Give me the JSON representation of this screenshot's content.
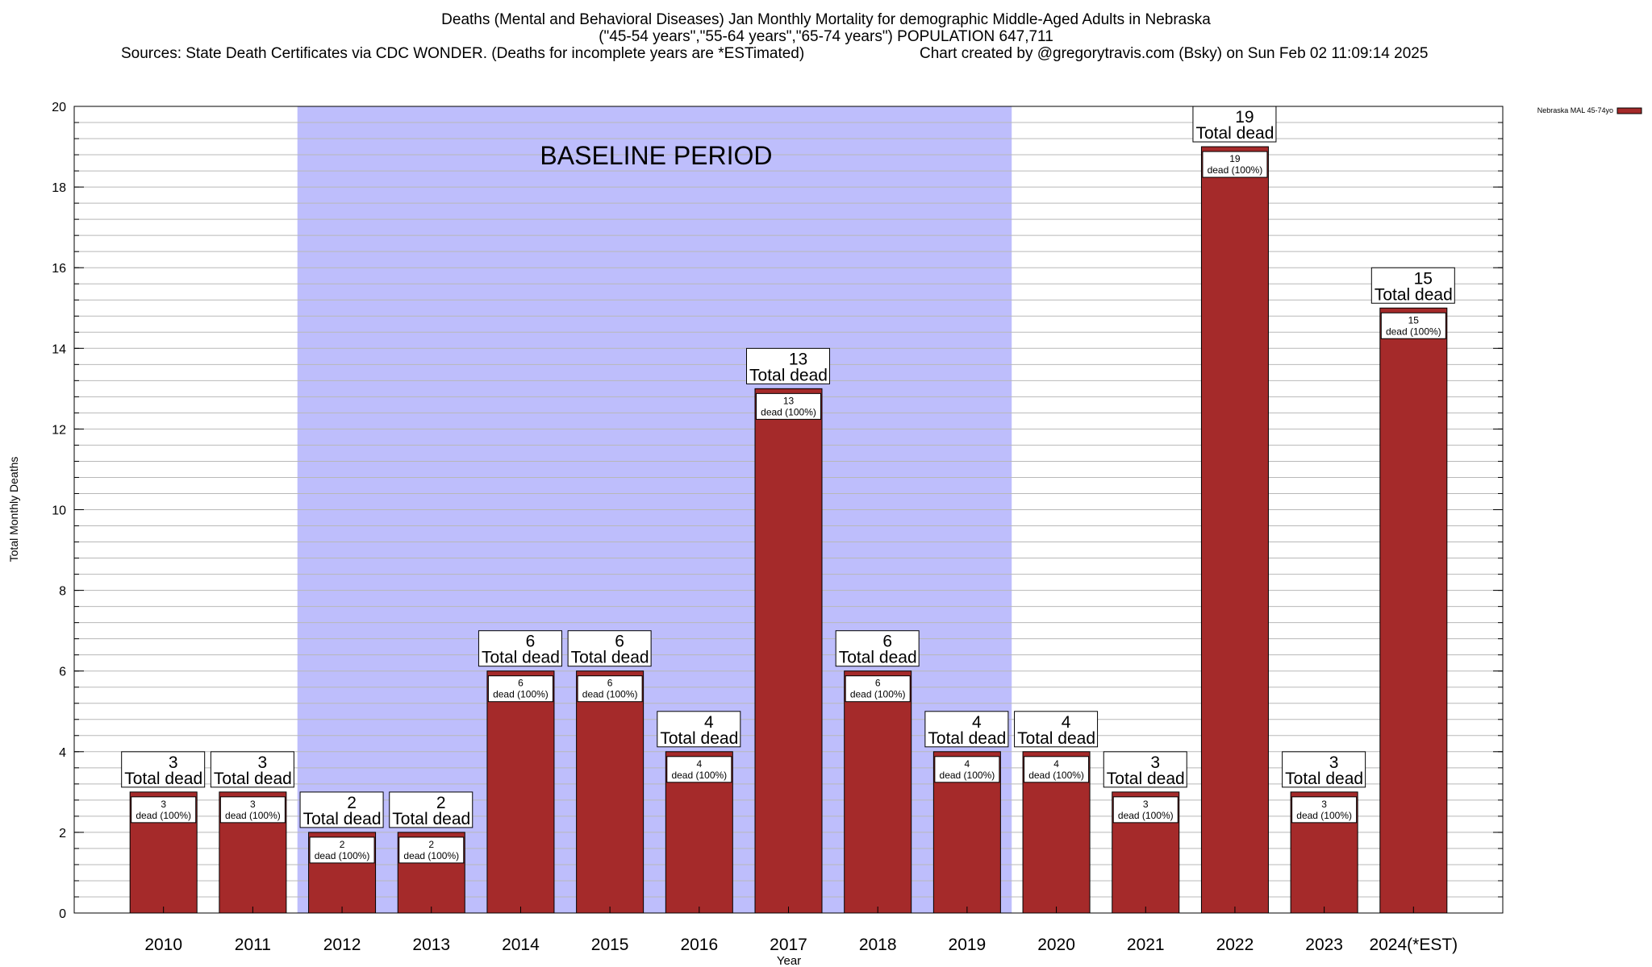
{
  "header": {
    "title_line1": "Deaths (Mental and Behavioral Diseases) Jan Monthly Mortality for demographic Middle-Aged Adults in Nebraska",
    "title_line2": "(\"45-54 years\",\"55-64 years\",\"65-74 years\") POPULATION 647,711",
    "sources": "Sources: State Death Certificates via CDC WONDER. (Deaths for incomplete years are *ESTimated)",
    "credit": "Chart created by @gregorytravis.com (Bsky) on Sun Feb 02 11:09:14 2025"
  },
  "chart_data": {
    "type": "bar",
    "categories": [
      "2010",
      "2011",
      "2012",
      "2013",
      "2014",
      "2015",
      "2016",
      "2017",
      "2018",
      "2019",
      "2020",
      "2021",
      "2022",
      "2023",
      "2024(*EST)"
    ],
    "series": [
      {
        "name": "Nebraska MAL 45-74yo",
        "values": [
          3,
          3,
          2,
          2,
          6,
          6,
          4,
          13,
          6,
          4,
          4,
          3,
          19,
          3,
          15
        ]
      }
    ],
    "xlabel": "Year",
    "ylabel": "Total Monthly Deaths",
    "ylim": [
      0,
      20
    ],
    "yticks": [
      0,
      2,
      4,
      6,
      8,
      10,
      12,
      14,
      16,
      18,
      20
    ],
    "grid": true,
    "legend": "top-right",
    "baseline": {
      "label": "BASELINE PERIOD",
      "from": "2012",
      "to": "2019"
    },
    "annotation_total_label": "Total dead",
    "annotation_inner_label": "dead (100%)",
    "colors": {
      "bar": "#a52a2a",
      "baseline": "#bebefc",
      "grid": "#b8b8b8"
    }
  }
}
